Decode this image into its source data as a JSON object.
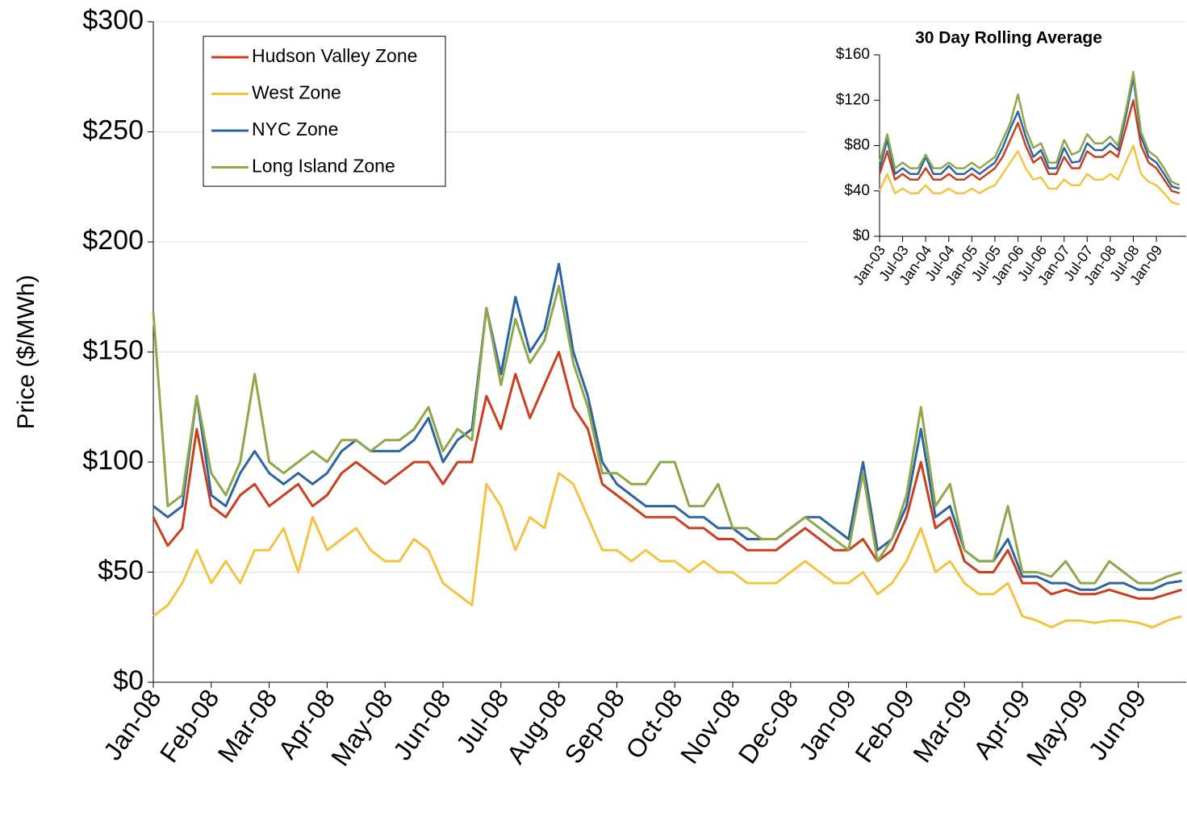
{
  "chart_data": [
    {
      "type": "line",
      "y_label": "Price ($/MWh)",
      "legend": "top-left",
      "grid": true,
      "ylim": [
        0,
        300
      ],
      "yticks": [
        {
          "value": 0,
          "label": "$0"
        },
        {
          "value": 50,
          "label": "$50"
        },
        {
          "value": 100,
          "label": "$100"
        },
        {
          "value": 150,
          "label": "$150"
        },
        {
          "value": 200,
          "label": "$200"
        },
        {
          "value": 250,
          "label": "$250"
        },
        {
          "value": 300,
          "label": "$300"
        }
      ],
      "categories": [
        "Jan-08",
        null,
        null,
        null,
        "Feb-08",
        null,
        null,
        null,
        "Mar-08",
        null,
        null,
        null,
        "Apr-08",
        null,
        null,
        null,
        "May-08",
        null,
        null,
        null,
        "Jun-08",
        null,
        null,
        null,
        "Jul-08",
        null,
        null,
        null,
        "Aug-08",
        null,
        null,
        null,
        "Sep-08",
        null,
        null,
        null,
        "Oct-08",
        null,
        null,
        null,
        "Nov-08",
        null,
        null,
        null,
        "Dec-08",
        null,
        null,
        null,
        "Jan-09",
        null,
        null,
        null,
        "Feb-09",
        null,
        null,
        null,
        "Mar-09",
        null,
        null,
        null,
        "Apr-09",
        null,
        null,
        null,
        "May-09",
        null,
        null,
        null,
        "Jun-09",
        null,
        null,
        null
      ],
      "series": [
        {
          "name": "Hudson Valley Zone",
          "color": "#c8401e",
          "values": [
            75,
            62,
            70,
            115,
            80,
            75,
            85,
            90,
            80,
            85,
            90,
            80,
            85,
            95,
            100,
            95,
            90,
            95,
            100,
            100,
            90,
            100,
            100,
            130,
            115,
            140,
            120,
            135,
            150,
            125,
            115,
            90,
            85,
            80,
            75,
            75,
            75,
            70,
            70,
            65,
            65,
            60,
            60,
            60,
            65,
            70,
            65,
            60,
            60,
            65,
            55,
            60,
            75,
            100,
            70,
            75,
            55,
            50,
            50,
            60,
            45,
            45,
            40,
            42,
            40,
            40,
            42,
            40,
            38,
            38,
            40,
            42
          ]
        },
        {
          "name": "West Zone",
          "color": "#f5c342",
          "values": [
            30,
            35,
            45,
            60,
            45,
            55,
            45,
            60,
            60,
            70,
            50,
            75,
            60,
            65,
            70,
            60,
            55,
            55,
            65,
            60,
            45,
            40,
            35,
            90,
            80,
            60,
            75,
            70,
            95,
            90,
            75,
            60,
            60,
            55,
            60,
            55,
            55,
            50,
            55,
            50,
            50,
            45,
            45,
            45,
            50,
            55,
            50,
            45,
            45,
            50,
            40,
            45,
            55,
            70,
            50,
            55,
            45,
            40,
            40,
            45,
            30,
            28,
            25,
            28,
            28,
            27,
            28,
            28,
            27,
            25,
            28,
            30
          ]
        },
        {
          "name": "NYC Zone",
          "color": "#2e64a0",
          "values": [
            80,
            75,
            80,
            130,
            85,
            80,
            95,
            105,
            95,
            90,
            95,
            90,
            95,
            105,
            110,
            105,
            105,
            105,
            110,
            120,
            100,
            110,
            115,
            170,
            140,
            175,
            150,
            160,
            190,
            150,
            130,
            100,
            90,
            85,
            80,
            80,
            80,
            75,
            75,
            70,
            70,
            65,
            65,
            65,
            70,
            75,
            75,
            70,
            65,
            100,
            60,
            65,
            80,
            115,
            75,
            80,
            60,
            55,
            55,
            65,
            48,
            48,
            45,
            45,
            42,
            42,
            45,
            45,
            42,
            42,
            45,
            46
          ]
        },
        {
          "name": "Long Island Zone",
          "color": "#8fa84a",
          "values": [
            168,
            80,
            85,
            130,
            95,
            85,
            100,
            140,
            100,
            95,
            100,
            105,
            100,
            110,
            110,
            105,
            110,
            110,
            115,
            125,
            105,
            115,
            110,
            170,
            135,
            165,
            145,
            155,
            180,
            145,
            125,
            95,
            95,
            90,
            90,
            100,
            100,
            80,
            80,
            90,
            70,
            70,
            65,
            65,
            70,
            75,
            70,
            65,
            60,
            95,
            55,
            65,
            85,
            125,
            80,
            90,
            60,
            55,
            55,
            80,
            50,
            50,
            48,
            55,
            45,
            45,
            55,
            50,
            45,
            45,
            48,
            50
          ]
        }
      ]
    },
    {
      "type": "line",
      "title": "30 Day Rolling Average",
      "grid": false,
      "ylim": [
        0,
        160
      ],
      "yticks": [
        {
          "value": 0,
          "label": "$0"
        },
        {
          "value": 40,
          "label": "$40"
        },
        {
          "value": 80,
          "label": "$80"
        },
        {
          "value": 120,
          "label": "$120"
        },
        {
          "value": 160,
          "label": "$160"
        }
      ],
      "categories": [
        "Jan-03",
        null,
        null,
        "Jul-03",
        null,
        null,
        "Jan-04",
        null,
        null,
        "Jul-04",
        null,
        null,
        "Jan-05",
        null,
        null,
        "Jul-05",
        null,
        null,
        "Jan-06",
        null,
        null,
        "Jul-06",
        null,
        null,
        "Jan-07",
        null,
        null,
        "Jul-07",
        null,
        null,
        "Jan-08",
        null,
        null,
        "Jul-08",
        null,
        null,
        "Jan-09",
        null,
        null,
        null
      ],
      "series": [
        {
          "color": "#c8401e",
          "values": [
            55,
            75,
            50,
            55,
            50,
            50,
            60,
            50,
            50,
            55,
            50,
            50,
            55,
            50,
            55,
            60,
            70,
            85,
            100,
            80,
            65,
            70,
            55,
            55,
            70,
            60,
            60,
            75,
            70,
            70,
            75,
            70,
            95,
            120,
            80,
            65,
            60,
            50,
            40,
            38
          ]
        },
        {
          "color": "#f5c342",
          "values": [
            40,
            55,
            38,
            42,
            38,
            38,
            45,
            38,
            38,
            42,
            38,
            38,
            42,
            38,
            42,
            45,
            55,
            65,
            75,
            60,
            50,
            52,
            42,
            42,
            50,
            45,
            45,
            55,
            50,
            50,
            55,
            50,
            65,
            80,
            55,
            48,
            45,
            38,
            30,
            28
          ]
        },
        {
          "color": "#2e64a0",
          "values": [
            60,
            85,
            55,
            60,
            55,
            55,
            70,
            55,
            55,
            62,
            55,
            55,
            60,
            55,
            60,
            65,
            78,
            95,
            110,
            88,
            70,
            76,
            60,
            60,
            78,
            65,
            66,
            82,
            76,
            76,
            82,
            76,
            105,
            140,
            88,
            70,
            65,
            55,
            44,
            42
          ]
        },
        {
          "color": "#8fa84a",
          "values": [
            65,
            90,
            60,
            65,
            60,
            60,
            72,
            60,
            60,
            65,
            60,
            60,
            65,
            60,
            65,
            70,
            85,
            100,
            125,
            95,
            78,
            82,
            65,
            65,
            85,
            72,
            75,
            90,
            82,
            82,
            88,
            80,
            110,
            145,
            92,
            75,
            70,
            60,
            48,
            45
          ]
        }
      ]
    }
  ]
}
